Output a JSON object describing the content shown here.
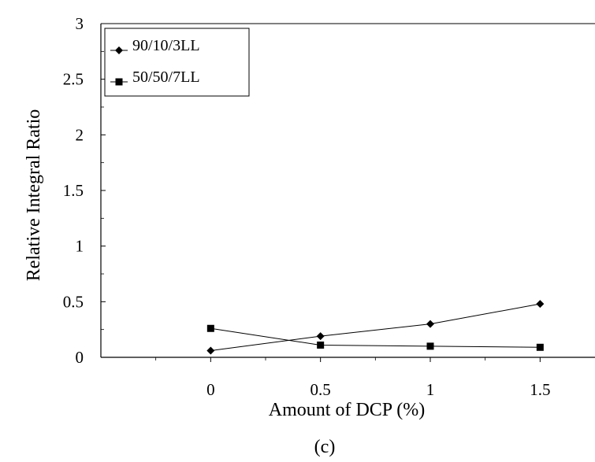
{
  "chart_data": {
    "type": "line",
    "xlabel": "Amount of DCP (%)",
    "ylabel": "Relative Integral Ratio",
    "caption": "(c)",
    "x_ticks": [
      "0",
      "0.5",
      "1",
      "1.5"
    ],
    "y_ticks": [
      "0",
      "0.5",
      "1",
      "1.5",
      "2",
      "2.5",
      "3"
    ],
    "xlim": [
      -0.5,
      1.75
    ],
    "ylim": [
      0,
      3
    ],
    "grid": false,
    "legend_position": "top-left",
    "series": [
      {
        "name": "90/10/3LL",
        "marker": "diamond",
        "x": [
          0,
          0.5,
          1,
          1.5
        ],
        "y": [
          0.06,
          0.19,
          0.3,
          0.48
        ]
      },
      {
        "name": "50/50/7LL",
        "marker": "square",
        "x": [
          0,
          0.5,
          1,
          1.5
        ],
        "y": [
          0.26,
          0.11,
          0.1,
          0.09
        ]
      }
    ]
  }
}
